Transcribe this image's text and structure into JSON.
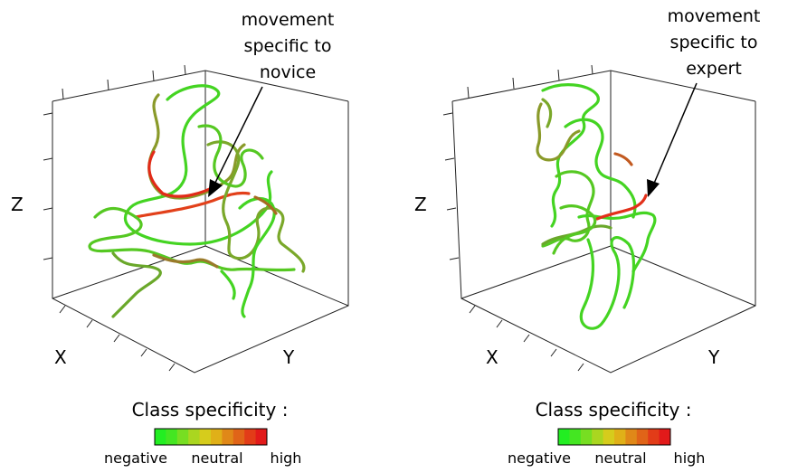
{
  "panels": [
    {
      "id": "novice",
      "annotation_lines": [
        "movement",
        "specific to",
        "novice"
      ],
      "axis_labels": {
        "x": "X",
        "y": "Y",
        "z": "Z"
      },
      "legend_title": "Class specificity :",
      "legend_labels": [
        "negative",
        "neutral",
        "high"
      ]
    },
    {
      "id": "expert",
      "annotation_lines": [
        "movement",
        "specific to",
        "expert"
      ],
      "axis_labels": {
        "x": "X",
        "y": "Y",
        "z": "Z"
      },
      "legend_title": "Class specificity :",
      "legend_labels": [
        "negative",
        "neutral",
        "high"
      ]
    }
  ],
  "colors": {
    "negative": "#22dd22",
    "neutral_low": "#88cc22",
    "neutral": "#d4c81c",
    "high_low": "#e07818",
    "high": "#e21a1a",
    "trajectory_mix": "#6a8a2a"
  },
  "colorbar_swatches": [
    "#22ee22",
    "#44e622",
    "#77de22",
    "#aad620",
    "#d6cc1c",
    "#e0b018",
    "#e08818",
    "#e06418",
    "#e23c18",
    "#e21a1a"
  ]
}
